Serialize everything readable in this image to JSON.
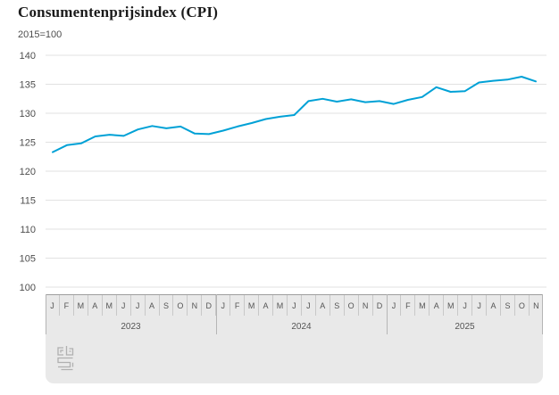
{
  "header": {
    "title": "Consumentenprijsindex (CPI)",
    "subtitle": "2015=100"
  },
  "colors": {
    "line": "#00a1d6",
    "grid": "#e2e2e2",
    "axis_text": "#4d4d4d",
    "footer_bg": "#e9e9e9",
    "band_top_border": "#9e9e9e",
    "cell_separator": "#c8c8c8",
    "year_separator": "#b5b5b5",
    "logo": "#b0b0b0"
  },
  "chart_data": {
    "type": "line",
    "title": "Consumentenprijsindex (CPI)",
    "subtitle": "2015=100",
    "ylabel": "",
    "xlabel": "",
    "ylim": [
      100,
      140
    ],
    "yticks": [
      140,
      135,
      130,
      125,
      120,
      115,
      110,
      105,
      100
    ],
    "grid": "horizontal",
    "legend_position": "none",
    "x_groups": [
      {
        "year": "2023",
        "months": [
          "J",
          "F",
          "M",
          "A",
          "M",
          "J",
          "J",
          "A",
          "S",
          "O",
          "N",
          "D"
        ]
      },
      {
        "year": "2024",
        "months": [
          "J",
          "F",
          "M",
          "A",
          "M",
          "J",
          "J",
          "A",
          "S",
          "O",
          "N",
          "D"
        ]
      },
      {
        "year": "2025",
        "months": [
          "J",
          "F",
          "M",
          "A",
          "M",
          "J",
          "J",
          "A",
          "S",
          "O",
          "N"
        ]
      }
    ],
    "series": [
      {
        "name": "CPI",
        "color": "#00a1d6",
        "values": [
          123.3,
          124.5,
          124.8,
          126.0,
          126.3,
          126.1,
          127.2,
          127.8,
          127.4,
          127.7,
          126.5,
          126.4,
          127.0,
          127.7,
          128.3,
          129.0,
          129.4,
          129.7,
          132.1,
          132.5,
          132.0,
          132.4,
          131.9,
          132.1,
          131.6,
          132.3,
          132.8,
          134.5,
          133.7,
          133.8,
          135.3,
          135.6,
          135.8,
          136.3,
          135.5
        ]
      }
    ]
  },
  "footer": {
    "logo_name": "cbs"
  }
}
